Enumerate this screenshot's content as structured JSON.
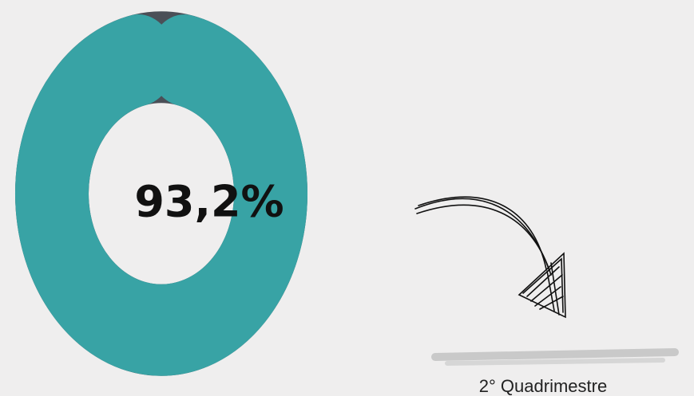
{
  "chart_data": {
    "type": "donut",
    "values": [
      93.2
    ],
    "value_labels": [
      "93,2%"
    ],
    "color": "#38a3a5",
    "track_color": "#4b4f57",
    "annotation": "2° Quadrimestre"
  }
}
